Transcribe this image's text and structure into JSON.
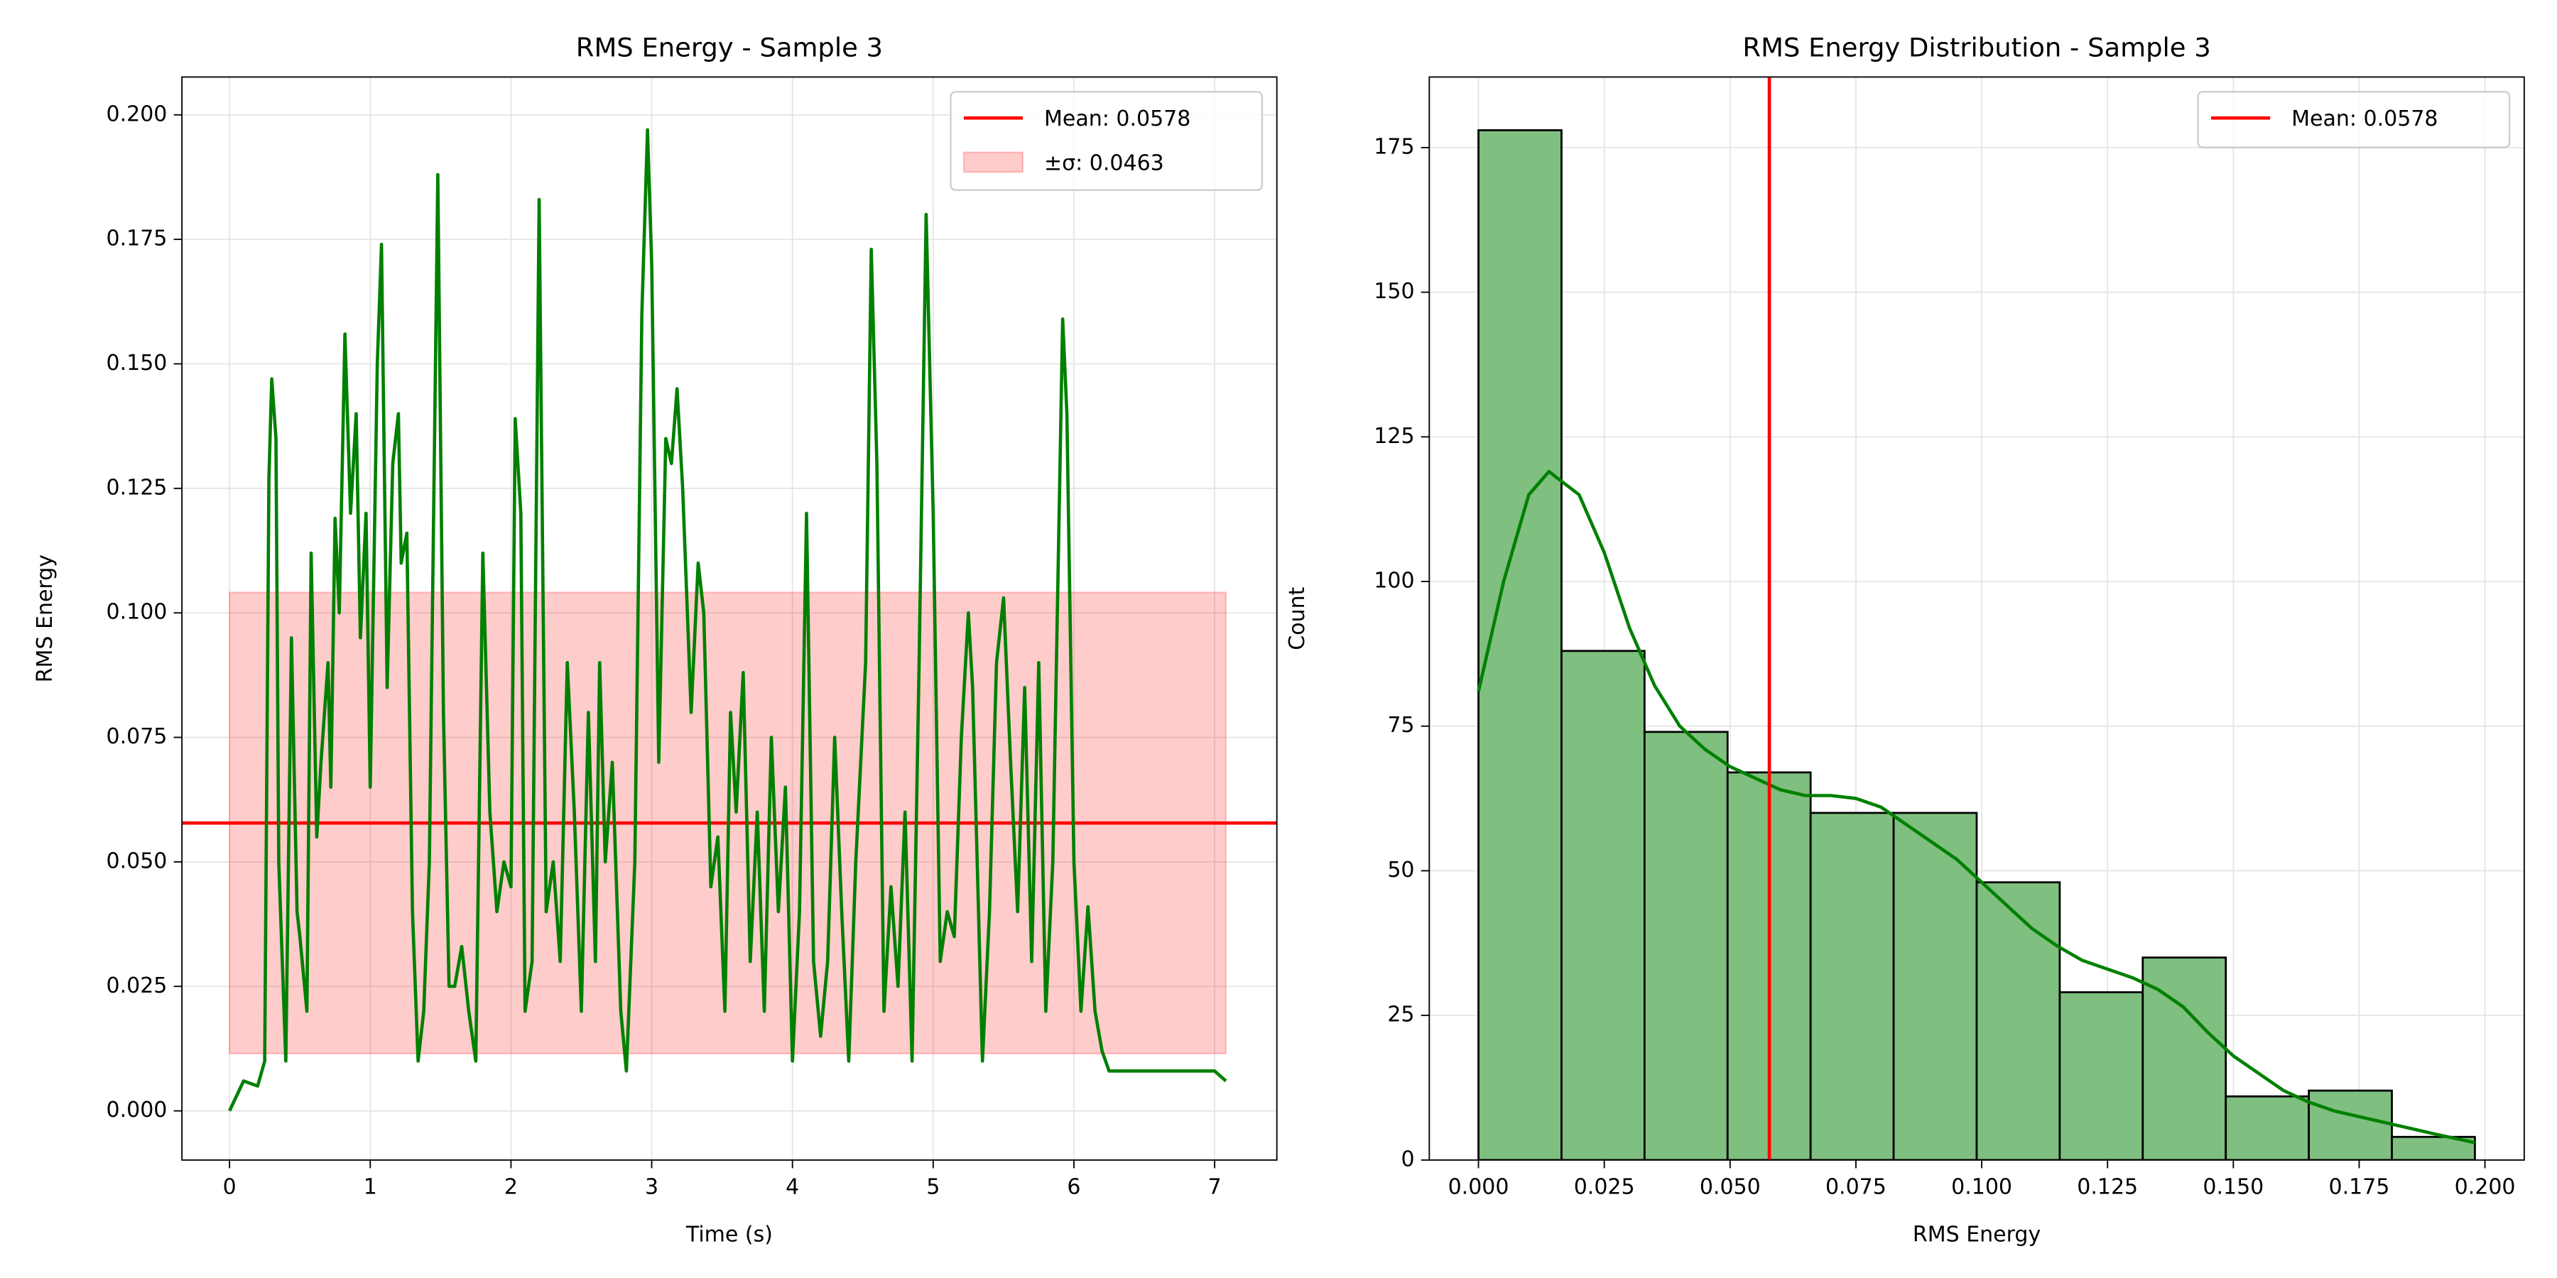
{
  "chart_data": [
    {
      "type": "line",
      "title": "RMS Energy - Sample 3",
      "xlabel": "Time (s)",
      "ylabel": "RMS Energy",
      "color": "#008000",
      "x": [
        0,
        0.1,
        0.2,
        0.25,
        0.28,
        0.3,
        0.33,
        0.35,
        0.4,
        0.44,
        0.48,
        0.5,
        0.55,
        0.58,
        0.62,
        0.65,
        0.7,
        0.72,
        0.75,
        0.78,
        0.82,
        0.86,
        0.9,
        0.93,
        0.97,
        1.0,
        1.05,
        1.08,
        1.12,
        1.16,
        1.2,
        1.22,
        1.26,
        1.3,
        1.34,
        1.38,
        1.42,
        1.48,
        1.52,
        1.56,
        1.6,
        1.65,
        1.7,
        1.75,
        1.8,
        1.85,
        1.9,
        1.95,
        2.0,
        2.03,
        2.07,
        2.1,
        2.15,
        2.2,
        2.25,
        2.3,
        2.35,
        2.4,
        2.45,
        2.5,
        2.55,
        2.6,
        2.63,
        2.67,
        2.72,
        2.78,
        2.82,
        2.88,
        2.93,
        2.97,
        3.0,
        3.05,
        3.1,
        3.14,
        3.18,
        3.22,
        3.28,
        3.33,
        3.37,
        3.42,
        3.47,
        3.52,
        3.56,
        3.6,
        3.65,
        3.7,
        3.75,
        3.8,
        3.85,
        3.9,
        3.95,
        4.0,
        4.05,
        4.1,
        4.15,
        4.2,
        4.25,
        4.3,
        4.35,
        4.4,
        4.45,
        4.52,
        4.56,
        4.6,
        4.65,
        4.7,
        4.75,
        4.8,
        4.85,
        4.9,
        4.95,
        5.0,
        5.05,
        5.1,
        5.15,
        5.2,
        5.25,
        5.28,
        5.35,
        5.4,
        5.45,
        5.5,
        5.55,
        5.6,
        5.65,
        5.7,
        5.75,
        5.8,
        5.85,
        5.92,
        5.95,
        6.0,
        6.05,
        6.1,
        6.15,
        6.2,
        6.25,
        6.4,
        6.6,
        6.8,
        7.0,
        7.08
      ],
      "values": [
        0,
        0.006,
        0.005,
        0.01,
        0.127,
        0.147,
        0.135,
        0.05,
        0.01,
        0.095,
        0.04,
        0.035,
        0.02,
        0.112,
        0.055,
        0.07,
        0.09,
        0.065,
        0.119,
        0.1,
        0.156,
        0.12,
        0.14,
        0.095,
        0.12,
        0.065,
        0.15,
        0.174,
        0.085,
        0.13,
        0.14,
        0.11,
        0.116,
        0.04,
        0.01,
        0.02,
        0.05,
        0.188,
        0.08,
        0.025,
        0.025,
        0.033,
        0.02,
        0.01,
        0.112,
        0.06,
        0.04,
        0.05,
        0.045,
        0.139,
        0.12,
        0.02,
        0.03,
        0.183,
        0.04,
        0.05,
        0.03,
        0.09,
        0.06,
        0.02,
        0.08,
        0.03,
        0.09,
        0.05,
        0.07,
        0.02,
        0.008,
        0.05,
        0.16,
        0.197,
        0.17,
        0.07,
        0.135,
        0.13,
        0.145,
        0.125,
        0.08,
        0.11,
        0.1,
        0.045,
        0.055,
        0.02,
        0.08,
        0.06,
        0.088,
        0.03,
        0.06,
        0.02,
        0.075,
        0.04,
        0.065,
        0.01,
        0.04,
        0.12,
        0.03,
        0.015,
        0.03,
        0.075,
        0.04,
        0.01,
        0.05,
        0.09,
        0.173,
        0.13,
        0.02,
        0.045,
        0.025,
        0.06,
        0.01,
        0.09,
        0.18,
        0.12,
        0.03,
        0.04,
        0.035,
        0.075,
        0.1,
        0.085,
        0.01,
        0.04,
        0.09,
        0.103,
        0.07,
        0.04,
        0.085,
        0.03,
        0.09,
        0.02,
        0.05,
        0.159,
        0.14,
        0.05,
        0.02,
        0.041,
        0.02,
        0.012,
        0.008,
        0.008,
        0.008,
        0.008,
        0.008,
        0.006
      ],
      "mean": {
        "label": "Mean: 0.0578",
        "value": 0.0578,
        "color": "#ff0000"
      },
      "band": {
        "label": "±σ: 0.0463",
        "ylim": [
          0.0115,
          0.1041
        ],
        "color": "#ff0000"
      },
      "xlim": [
        -0.338,
        7.442
      ],
      "xticks": [
        0,
        1,
        2,
        3,
        4,
        5,
        6,
        7
      ],
      "ylim": [
        -0.00987,
        0.2076
      ],
      "yticks": [
        {
          "value": 0,
          "label": "0.000"
        },
        {
          "value": 0.025,
          "label": "0.025"
        },
        {
          "value": 0.05,
          "label": "0.050"
        },
        {
          "value": 0.075,
          "label": "0.075"
        },
        {
          "value": 0.1,
          "label": "0.100"
        },
        {
          "value": 0.125,
          "label": "0.125"
        },
        {
          "value": 0.15,
          "label": "0.150"
        },
        {
          "value": 0.175,
          "label": "0.175"
        },
        {
          "value": 0.2,
          "label": "0.200"
        }
      ],
      "grid": true,
      "legend": "upper right"
    },
    {
      "type": "histogram",
      "title": "RMS Energy Distribution - Sample 3",
      "xlabel": "RMS Energy",
      "ylabel": "Count",
      "color": "#7fbf7f",
      "bins": [
        0,
        0.0165,
        0.033,
        0.0495,
        0.066,
        0.0825,
        0.099,
        0.1155,
        0.132,
        0.1485,
        0.165,
        0.1815,
        0.198
      ],
      "values": [
        178,
        88,
        74,
        67,
        60,
        60,
        48,
        29,
        35,
        11,
        12,
        4
      ],
      "kde": {
        "color": "#008000",
        "x": [
          0,
          0.005,
          0.01,
          0.014,
          0.02,
          0.025,
          0.03,
          0.035,
          0.04,
          0.045,
          0.05,
          0.055,
          0.06,
          0.065,
          0.07,
          0.075,
          0.08,
          0.085,
          0.09,
          0.095,
          0.1,
          0.105,
          0.11,
          0.115,
          0.12,
          0.125,
          0.13,
          0.135,
          0.14,
          0.145,
          0.15,
          0.155,
          0.16,
          0.165,
          0.17,
          0.175,
          0.18,
          0.185,
          0.19,
          0.198
        ],
        "values": [
          81,
          100,
          115,
          119,
          115,
          105,
          92,
          82,
          75,
          71,
          68,
          66,
          64,
          63,
          63,
          62.5,
          61,
          58,
          55,
          52,
          48,
          44,
          40,
          37,
          34.5,
          33,
          31.5,
          29.5,
          26.5,
          22,
          18,
          15,
          12,
          10,
          8.5,
          7.5,
          6.5,
          5.5,
          4.5,
          3
        ]
      },
      "mean": {
        "label": "Mean: 0.0578",
        "value": 0.0578,
        "color": "#ff0000"
      },
      "xlim": [
        -0.00977,
        0.2078
      ],
      "xticks": [
        {
          "value": 0,
          "label": "0.000"
        },
        {
          "value": 0.025,
          "label": "0.025"
        },
        {
          "value": 0.05,
          "label": "0.050"
        },
        {
          "value": 0.075,
          "label": "0.075"
        },
        {
          "value": 0.1,
          "label": "0.100"
        },
        {
          "value": 0.125,
          "label": "0.125"
        },
        {
          "value": 0.15,
          "label": "0.150"
        },
        {
          "value": 0.175,
          "label": "0.175"
        },
        {
          "value": 0.2,
          "label": "0.200"
        }
      ],
      "ylim": [
        0,
        187.2
      ],
      "yticks": [
        0,
        25,
        50,
        75,
        100,
        125,
        150,
        175
      ],
      "grid": true,
      "legend": "upper right"
    }
  ]
}
